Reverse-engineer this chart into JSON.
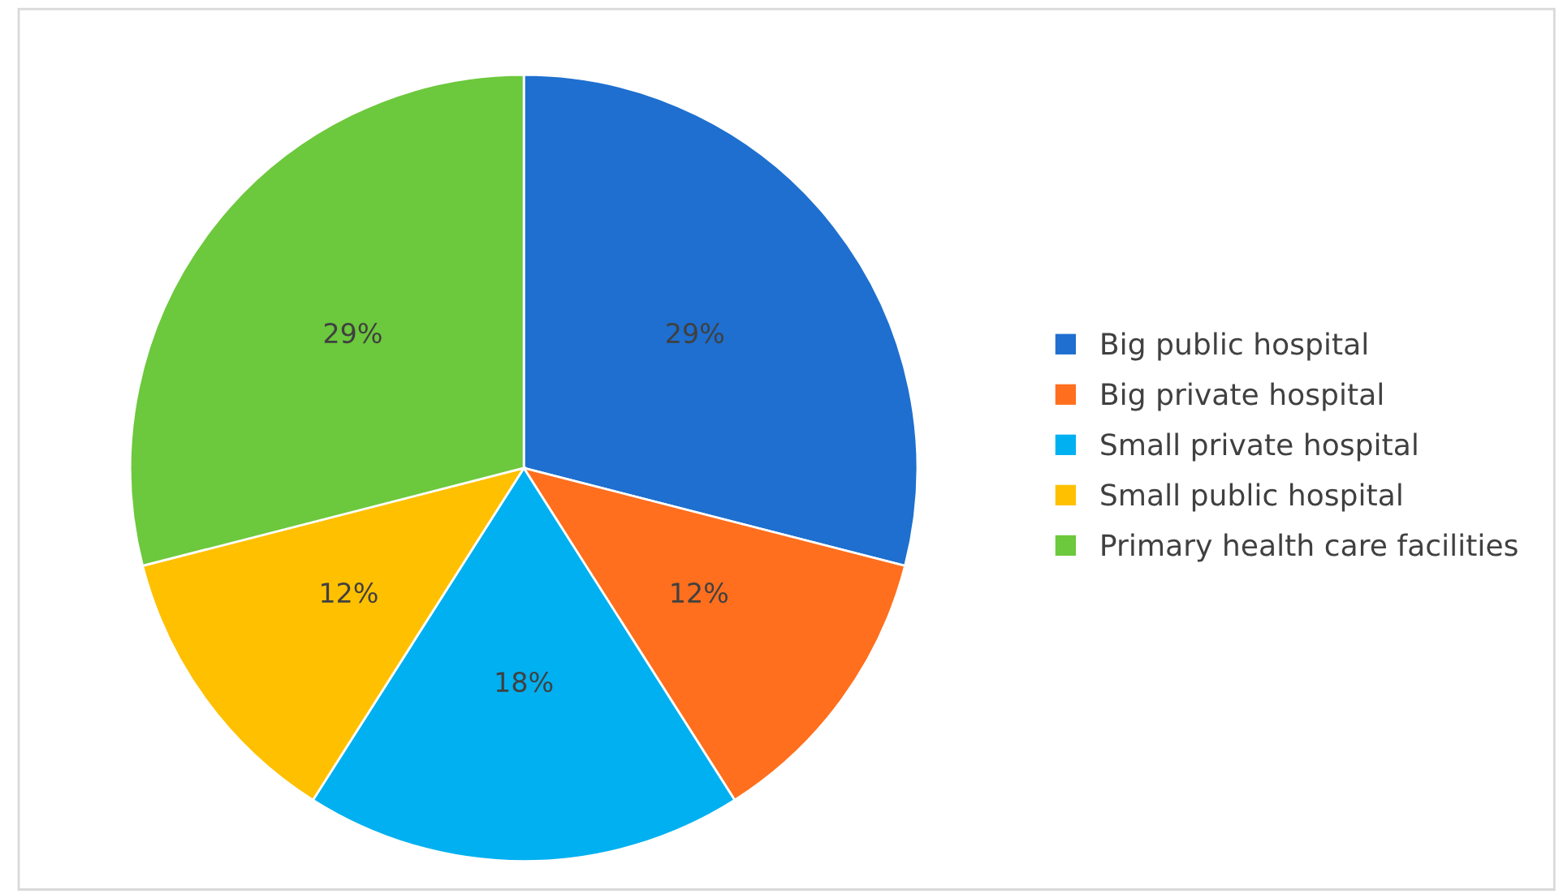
{
  "chart_data": {
    "type": "pie",
    "categories": [
      "Big public hospital",
      "Big private hospital",
      "Small private hospital",
      "Small public hospital",
      "Primary health care facilities"
    ],
    "values": [
      29,
      12,
      18,
      12,
      29
    ],
    "colors": [
      "#1e6fcf",
      "#ff6f1e",
      "#00b0f0",
      "#ffc000",
      "#6cc83c"
    ],
    "value_labels": [
      "29%",
      "12%",
      "18%",
      "12%",
      "29%"
    ],
    "legend": "right"
  }
}
